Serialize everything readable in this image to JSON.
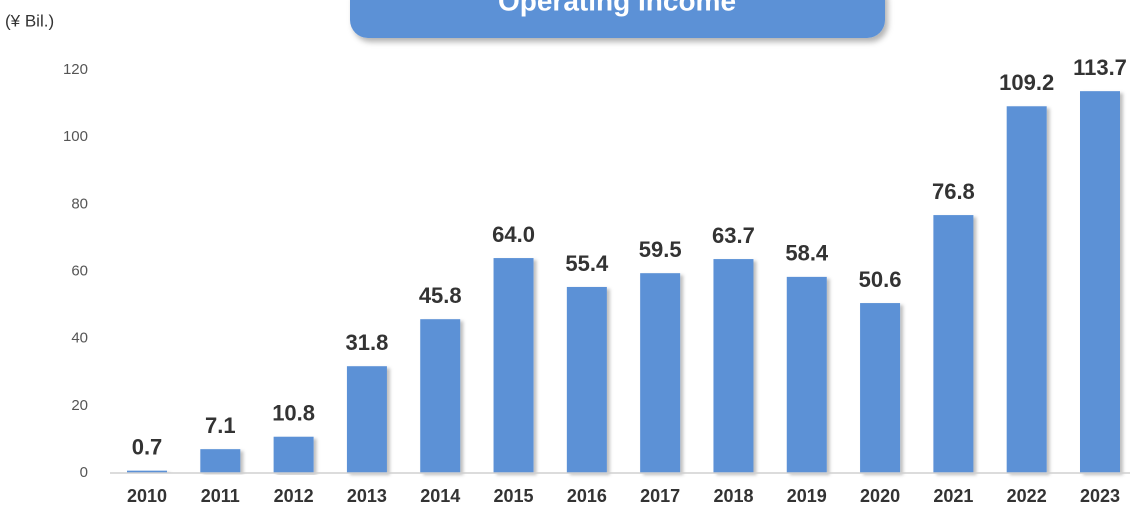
{
  "chart_data": {
    "type": "bar",
    "title": "Operating Income",
    "y_label": "(¥ Bil.)",
    "categories": [
      "2010",
      "2011",
      "2012",
      "2013",
      "2014",
      "2015",
      "2016",
      "2017",
      "2018",
      "2019",
      "2020",
      "2021",
      "2022",
      "2023"
    ],
    "values": [
      0.7,
      7.1,
      10.8,
      31.8,
      45.8,
      64.0,
      55.4,
      59.5,
      63.7,
      58.4,
      50.6,
      76.8,
      109.2,
      113.7
    ],
    "value_labels": [
      "0.7",
      "7.1",
      "10.8",
      "31.8",
      "45.8",
      "64.0",
      "55.4",
      "59.5",
      "63.7",
      "58.4",
      "50.6",
      "76.8",
      "109.2",
      "113.7"
    ],
    "color": "#5b91d6",
    "ylim": [
      0,
      120
    ],
    "yticks": [
      0,
      20,
      40,
      60,
      80,
      100,
      120
    ],
    "grid": false
  }
}
